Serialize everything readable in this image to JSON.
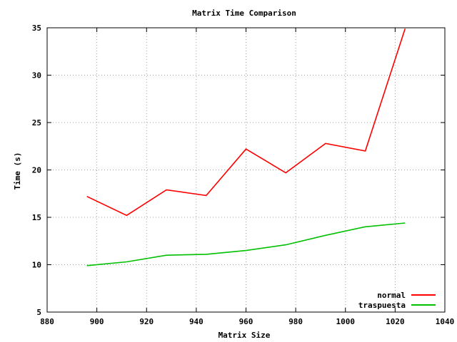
{
  "chart_data": {
    "type": "line",
    "title": "Matrix Time Comparison",
    "xlabel": "Matrix Size",
    "ylabel": "Time (s)",
    "xlim": [
      880,
      1040
    ],
    "ylim": [
      5,
      35
    ],
    "xticks": [
      "880",
      "900",
      "920",
      "940",
      "960",
      "980",
      "1000",
      "1020",
      "1040"
    ],
    "yticks": [
      "5",
      "10",
      "15",
      "20",
      "25",
      "30",
      "35"
    ],
    "grid": true,
    "legend_position": "bottom-right",
    "series": [
      {
        "name": "normal",
        "color": "#ff0000",
        "x": [
          896,
          912,
          928,
          944,
          960,
          976,
          992,
          1008,
          1024
        ],
        "y": [
          17.2,
          15.2,
          17.9,
          17.3,
          22.2,
          19.7,
          22.8,
          22.0,
          34.9
        ]
      },
      {
        "name": "traspuesta",
        "color": "#00c000",
        "x": [
          896,
          912,
          928,
          944,
          960,
          976,
          992,
          1008,
          1024
        ],
        "y": [
          9.9,
          10.3,
          11.0,
          11.1,
          11.5,
          12.1,
          13.1,
          14.0,
          14.4
        ]
      }
    ]
  }
}
